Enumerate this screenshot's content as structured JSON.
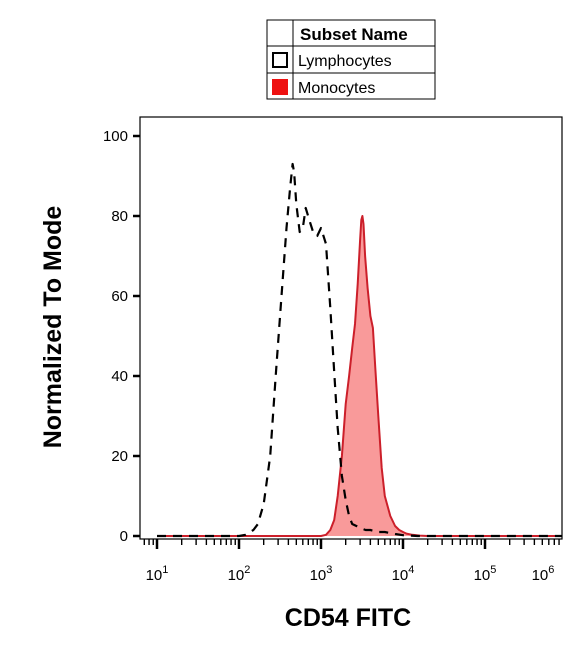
{
  "legend": {
    "title": "Subset Name",
    "items": [
      {
        "label": "Lymphocytes",
        "swatch": "outline"
      },
      {
        "label": "Monocytes",
        "swatch": "filled"
      }
    ]
  },
  "chart_data": {
    "type": "area",
    "xlabel": "CD54 FITC",
    "ylabel": "Normalized To Mode",
    "x_scale": "log",
    "xlim": [
      10,
      1000000
    ],
    "ylim": [
      0,
      100
    ],
    "x_ticks": [
      {
        "value": 10,
        "base": "10",
        "exp": "1"
      },
      {
        "value": 100,
        "base": "10",
        "exp": "2"
      },
      {
        "value": 1000,
        "base": "10",
        "exp": "3"
      },
      {
        "value": 10000,
        "base": "10",
        "exp": "4"
      },
      {
        "value": 100000,
        "base": "10",
        "exp": "5"
      },
      {
        "value": 1000000,
        "base": "10",
        "exp": "6"
      }
    ],
    "y_ticks": [
      "0",
      "20",
      "40",
      "60",
      "80",
      "100"
    ],
    "grid": false,
    "legend_position": "top-center",
    "colors": {
      "monocytes_fill": "#f99a9a",
      "monocytes_line": "#cc1f2a",
      "lymphocytes_line": "#000000",
      "legend_red": "#ee1111"
    },
    "series": [
      {
        "name": "Lymphocytes",
        "style": "dashed",
        "x": [
          10,
          100,
          120,
          150,
          170,
          200,
          240,
          280,
          330,
          380,
          420,
          450,
          470,
          500,
          550,
          600,
          650,
          720,
          800,
          900,
          1000,
          1150,
          1300,
          1450,
          1600,
          1800,
          2000,
          2200,
          2400,
          2700,
          3000,
          3500,
          4000,
          5000,
          6000,
          8000,
          10000,
          15000,
          20000,
          50000,
          1000000
        ],
        "y": [
          0,
          0,
          0.3,
          1.5,
          3,
          8,
          20,
          40,
          60,
          77,
          87,
          93,
          91,
          83,
          76,
          77,
          82,
          79,
          76,
          75,
          77,
          73,
          57,
          41,
          27,
          15,
          9,
          5,
          3,
          2.5,
          2,
          1.5,
          1.5,
          1,
          1,
          0.5,
          0.2,
          0,
          0,
          0,
          0
        ]
      },
      {
        "name": "Monocytes",
        "style": "filled",
        "x": [
          10,
          1000,
          1150,
          1300,
          1450,
          1600,
          1800,
          2000,
          2200,
          2400,
          2600,
          2800,
          3000,
          3100,
          3200,
          3300,
          3450,
          3700,
          4000,
          4300,
          4600,
          5000,
          5500,
          6000,
          7000,
          8000,
          9000,
          10000,
          11000,
          13000,
          16000,
          20000,
          1000000
        ],
        "y": [
          0,
          0,
          0.3,
          1.5,
          4,
          10,
          20,
          33,
          40,
          47,
          53,
          63,
          74,
          79,
          80,
          78,
          70,
          62,
          55,
          52,
          42,
          30,
          17,
          10,
          5,
          2.5,
          1.5,
          1,
          0.6,
          0.3,
          0.1,
          0,
          0
        ]
      }
    ]
  }
}
